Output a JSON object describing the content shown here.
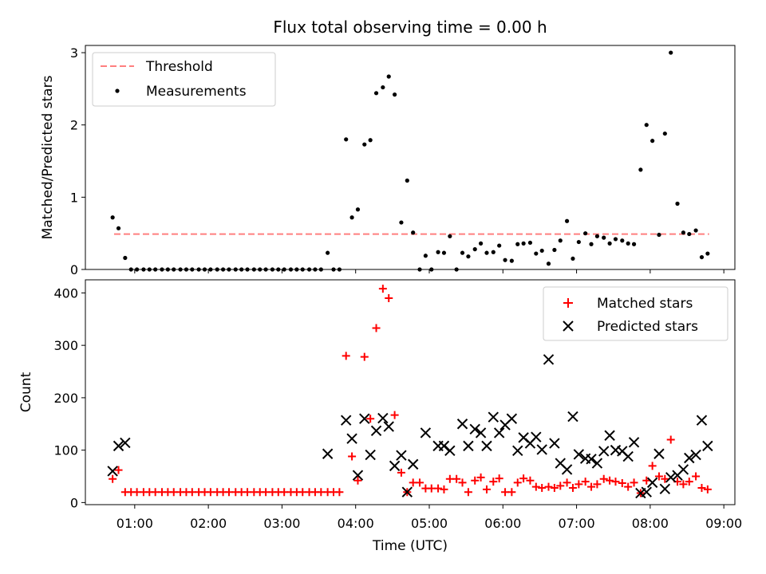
{
  "figure": {
    "title": "Flux total observing time = 0.00 h",
    "xlabel": "Time (UTC)",
    "x_ticks": [
      "01:00",
      "02:00",
      "03:00",
      "04:00",
      "05:00",
      "06:00",
      "07:00",
      "08:00",
      "09:00"
    ],
    "x_range_hours": [
      0.33,
      9.15
    ]
  },
  "chart_data": [
    {
      "type": "scatter",
      "ylabel": "Matched/Predicted stars",
      "ylim": [
        0,
        3.1
      ],
      "y_ticks": [
        0,
        1,
        2,
        3
      ],
      "legend_position": "top-left",
      "threshold": {
        "name": "Threshold",
        "value": 0.49,
        "x_start": 0.72,
        "x_end": 8.8,
        "color": "#ff7f7f"
      },
      "series": [
        {
          "name": "Measurements",
          "color": "#000000",
          "x": [
            0.7,
            0.78,
            0.87,
            0.95,
            1.03,
            1.12,
            1.2,
            1.28,
            1.37,
            1.45,
            1.53,
            1.62,
            1.7,
            1.78,
            1.87,
            1.95,
            2.03,
            2.12,
            2.2,
            2.28,
            2.37,
            2.45,
            2.53,
            2.62,
            2.7,
            2.78,
            2.87,
            2.95,
            3.03,
            3.12,
            3.2,
            3.28,
            3.37,
            3.45,
            3.53,
            3.62,
            3.7,
            3.78,
            3.87,
            3.95,
            4.03,
            4.12,
            4.2,
            4.28,
            4.37,
            4.45,
            4.53,
            4.62,
            4.7,
            4.78,
            4.87,
            4.95,
            5.03,
            5.12,
            5.2,
            5.28,
            5.37,
            5.45,
            5.53,
            5.62,
            5.7,
            5.78,
            5.87,
            5.95,
            6.03,
            6.12,
            6.2,
            6.28,
            6.37,
            6.45,
            6.53,
            6.62,
            6.7,
            6.78,
            6.87,
            6.95,
            7.03,
            7.12,
            7.2,
            7.28,
            7.37,
            7.45,
            7.53,
            7.62,
            7.7,
            7.78,
            7.87,
            7.95,
            8.03,
            8.12,
            8.2,
            8.28,
            8.37,
            8.45,
            8.53,
            8.62,
            8.7,
            8.78
          ],
          "y": [
            0.72,
            0.57,
            0.16,
            0,
            0,
            0,
            0,
            0,
            0,
            0,
            0,
            0,
            0,
            0,
            0,
            0,
            0,
            0,
            0,
            0,
            0,
            0,
            0,
            0,
            0,
            0,
            0,
            0,
            0,
            0,
            0,
            0,
            0,
            0,
            0,
            0.23,
            0,
            0,
            1.8,
            0.72,
            0.83,
            1.73,
            1.79,
            2.44,
            2.52,
            2.67,
            2.42,
            0.65,
            1.23,
            0.51,
            0,
            0.19,
            0,
            0.24,
            0.23,
            0.46,
            0,
            0.23,
            0.18,
            0.28,
            0.36,
            0.23,
            0.24,
            0.33,
            0.13,
            0.12,
            0.35,
            0.36,
            0.37,
            0.22,
            0.26,
            0.08,
            0.27,
            0.4,
            0.67,
            0.15,
            0.38,
            0.5,
            0.35,
            0.46,
            0.44,
            0.36,
            0.42,
            0.4,
            0.36,
            0.35,
            1.38,
            2.0,
            1.78,
            0.48,
            1.88,
            3.0,
            0.91,
            0.51,
            0.49,
            0.54,
            0.17,
            0.22
          ]
        }
      ]
    },
    {
      "type": "scatter",
      "ylabel": "Count",
      "ylim": [
        -4,
        425
      ],
      "y_ticks": [
        0,
        100,
        200,
        300,
        400
      ],
      "legend_position": "top-right",
      "series": [
        {
          "name": "Matched stars",
          "color": "#ff0000",
          "x": [
            0.7,
            0.78,
            0.87,
            0.95,
            1.03,
            1.12,
            1.2,
            1.28,
            1.37,
            1.45,
            1.53,
            1.62,
            1.7,
            1.78,
            1.87,
            1.95,
            2.03,
            2.12,
            2.2,
            2.28,
            2.37,
            2.45,
            2.53,
            2.62,
            2.7,
            2.78,
            2.87,
            2.95,
            3.03,
            3.12,
            3.2,
            3.28,
            3.37,
            3.45,
            3.53,
            3.62,
            3.7,
            3.78,
            3.87,
            3.95,
            4.03,
            4.12,
            4.2,
            4.28,
            4.37,
            4.45,
            4.53,
            4.62,
            4.7,
            4.78,
            4.87,
            4.95,
            5.03,
            5.12,
            5.2,
            5.28,
            5.37,
            5.45,
            5.53,
            5.62,
            5.7,
            5.78,
            5.87,
            5.95,
            6.03,
            6.12,
            6.2,
            6.28,
            6.37,
            6.45,
            6.53,
            6.62,
            6.7,
            6.78,
            6.87,
            6.95,
            7.03,
            7.12,
            7.2,
            7.28,
            7.37,
            7.45,
            7.53,
            7.62,
            7.7,
            7.78,
            7.87,
            7.95,
            8.03,
            8.12,
            8.2,
            8.28,
            8.37,
            8.45,
            8.53,
            8.62,
            8.7,
            8.78
          ],
          "y": [
            45,
            62,
            20,
            20,
            20,
            20,
            20,
            20,
            20,
            20,
            20,
            20,
            20,
            20,
            20,
            20,
            20,
            20,
            20,
            20,
            20,
            20,
            20,
            20,
            20,
            20,
            20,
            20,
            20,
            20,
            20,
            20,
            20,
            20,
            20,
            20,
            20,
            20,
            280,
            88,
            42,
            278,
            160,
            333,
            408,
            390,
            167,
            57,
            20,
            38,
            38,
            27,
            27,
            27,
            25,
            45,
            45,
            38,
            20,
            42,
            48,
            25,
            40,
            46,
            20,
            20,
            38,
            46,
            42,
            30,
            28,
            30,
            28,
            32,
            38,
            28,
            35,
            40,
            30,
            35,
            45,
            42,
            40,
            37,
            30,
            38,
            18,
            42,
            70,
            50,
            45,
            120,
            40,
            35,
            40,
            50,
            28,
            25
          ]
        },
        {
          "name": "Predicted stars",
          "color": "#000000",
          "x": [
            0.7,
            0.78,
            0.87,
            3.62,
            3.87,
            3.95,
            4.03,
            4.12,
            4.2,
            4.28,
            4.37,
            4.45,
            4.53,
            4.62,
            4.7,
            4.78,
            4.95,
            5.12,
            5.2,
            5.28,
            5.45,
            5.53,
            5.62,
            5.7,
            5.78,
            5.87,
            5.95,
            6.03,
            6.12,
            6.2,
            6.28,
            6.37,
            6.45,
            6.53,
            6.62,
            6.7,
            6.78,
            6.87,
            6.95,
            7.03,
            7.12,
            7.2,
            7.28,
            7.37,
            7.45,
            7.53,
            7.62,
            7.7,
            7.78,
            7.87,
            7.95,
            8.03,
            8.12,
            8.2,
            8.28,
            8.37,
            8.45,
            8.53,
            8.62,
            8.7,
            8.78
          ],
          "y": [
            60,
            108,
            114,
            93,
            157,
            122,
            52,
            160,
            91,
            137,
            161,
            145,
            70,
            90,
            20,
            73,
            133,
            108,
            108,
            99,
            150,
            108,
            140,
            133,
            108,
            163,
            133,
            148,
            160,
            99,
            124,
            113,
            125,
            101,
            273,
            113,
            75,
            63,
            164,
            92,
            84,
            83,
            75,
            98,
            128,
            100,
            98,
            88,
            115,
            18,
            20,
            38,
            93,
            26,
            48,
            52,
            63,
            85,
            91,
            157,
            108
          ]
        }
      ]
    }
  ]
}
